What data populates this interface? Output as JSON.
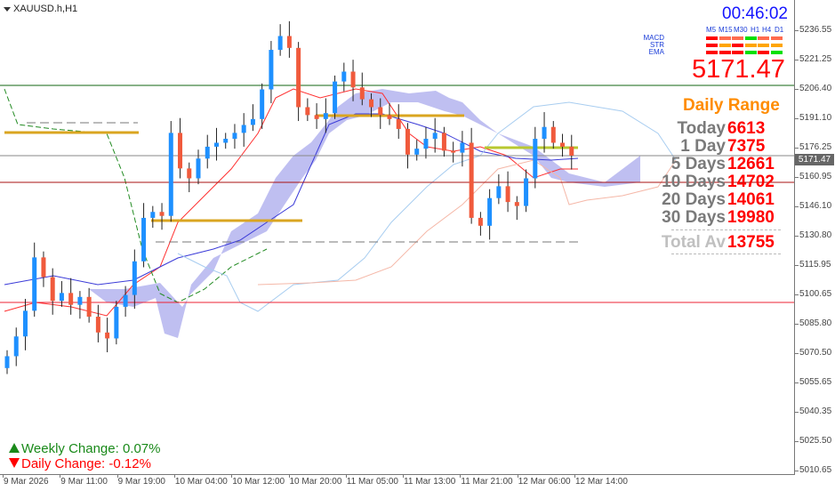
{
  "symbol_label": "XAUUSD.h,H1",
  "clock": "00:46:02",
  "timeframes": [
    "M5",
    "M15",
    "M30",
    "H1",
    "H4",
    "D1"
  ],
  "indicators": [
    {
      "name": "MACD",
      "signals": [
        "#ff0000",
        "#ff6b4f",
        "#ff6b4f",
        "#00e000",
        "#ff6b4f",
        "#ff6b4f"
      ]
    },
    {
      "name": "STR",
      "signals": [
        "#ff0000",
        "#ffa500",
        "#ff0000",
        "#ffa500",
        "#ffa500",
        "#ffa500"
      ]
    },
    {
      "name": "EMA",
      "signals": [
        "#ff0000",
        "#ff0000",
        "#ff0000",
        "#00e000",
        "#ff0000",
        "#00e000"
      ]
    }
  ],
  "current_price": "5171.47",
  "daily_range": {
    "title": "Daily Range",
    "rows": [
      {
        "label": "Today",
        "value": "6613"
      },
      {
        "label": "1 Day",
        "value": "7375"
      },
      {
        "label": "5 Days",
        "value": "12661"
      },
      {
        "label": "10 Days",
        "value": "14702"
      },
      {
        "label": "20 Days",
        "value": "14061"
      },
      {
        "label": "30 Days",
        "value": "19980"
      }
    ],
    "total_label": "Total Av",
    "total_value": "13755"
  },
  "weekly_change": "Weekly Change: 0.07%",
  "daily_change": "Daily Change: -0.12%",
  "price_axis": [
    "5236.55",
    "5221.25",
    "5206.40",
    "5191.10",
    "5176.25",
    "5160.95",
    "5146.10",
    "5130.80",
    "5115.95",
    "5100.65",
    "5085.80",
    "5070.50",
    "5055.65",
    "5040.35",
    "5025.50",
    "5010.65"
  ],
  "time_axis": [
    "9 Mar 2026",
    "9 Mar 11:00",
    "9 Mar 19:00",
    "10 Mar 04:00",
    "10 Mar 12:00",
    "10 Mar 20:00",
    "11 Mar 05:00",
    "11 Mar 13:00",
    "11 Mar 21:00",
    "12 Mar 06:00",
    "12 Mar 14:00"
  ],
  "colors": {
    "bull": "#1e90ff",
    "bear": "#f05a3c",
    "cloud": "#b4b4ee",
    "accent": "#ff8c00"
  },
  "chart_data": {
    "type": "candlestick",
    "closes": [
      5070,
      5080,
      5093,
      5120,
      5110,
      5098,
      5102,
      5096,
      5100,
      5090,
      5082,
      5079,
      5095,
      5101,
      5118,
      5140,
      5143,
      5141,
      5183,
      5165,
      5160,
      5170,
      5176,
      5178,
      5180,
      5183,
      5187,
      5190,
      5205,
      5225,
      5232,
      5226,
      5196,
      5192,
      5190,
      5193,
      5209,
      5214,
      5206,
      5200,
      5196,
      5192,
      5190,
      5185,
      5172,
      5175,
      5180,
      5183,
      5174,
      5173,
      5178,
      5140,
      5136,
      5150,
      5156,
      5148,
      5146,
      5160,
      5180,
      5186,
      5178,
      5176,
      5171.47
    ],
    "ylim": [
      5006,
      5245
    ],
    "levels": [
      5207.5,
      5171.47,
      5158,
      5096.5
    ]
  }
}
